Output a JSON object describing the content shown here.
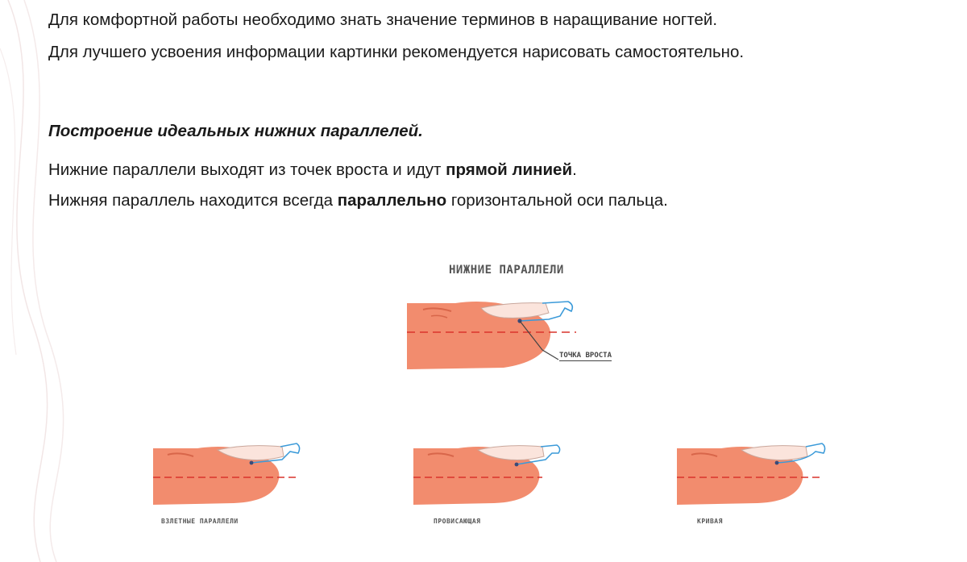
{
  "text": {
    "line1": "Для комфортной работы необходимо знать значение терминов в наращивание ногтей.",
    "line2": "Для лучшего усвоения информации картинки рекомендуется нарисовать самостоятельно.",
    "heading": "Построение идеальных нижних параллелей.",
    "para1": {
      "before": "Нижние параллели выходят из точек вроста и идут ",
      "bold": "прямой линией",
      "after": "."
    },
    "para2": {
      "before": "Нижняя параллель находится всегда ",
      "bold": "параллельно",
      "after": " горизонтальной оси пальца."
    }
  },
  "figure": {
    "title": "НИЖНИЕ ПАРАЛЛЕЛИ",
    "pointer_label": "ТОЧКА ВРОСТА",
    "variants": [
      {
        "caption": "ВЗЛЕТНЫЕ ПАРАЛЛЕЛИ"
      },
      {
        "caption": "ПРОВИСАЮЩАЯ"
      },
      {
        "caption": "КРИВАЯ"
      }
    ]
  },
  "colors": {
    "finger": "#f28c6e",
    "finger_shadow": "#d8664a",
    "nail": "#fbe4dc",
    "free_edge": "#3a9ad9",
    "parallel_line": "#d9342b"
  }
}
